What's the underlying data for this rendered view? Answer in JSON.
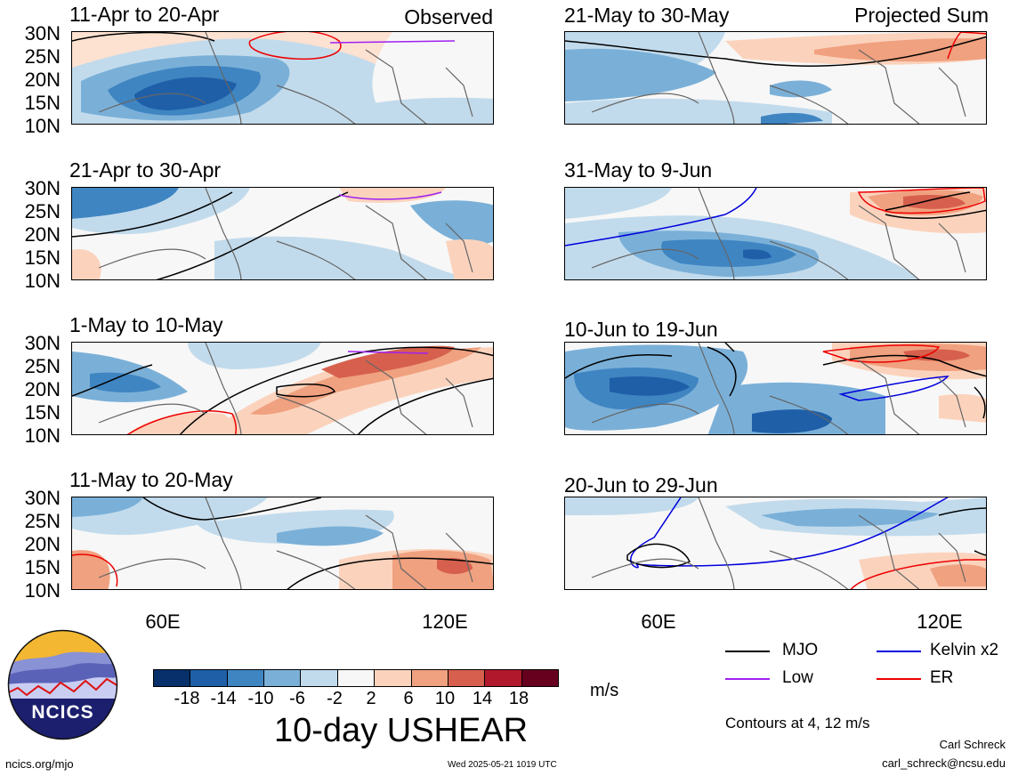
{
  "headers": {
    "observed": "Observed",
    "projected": "Projected Sum"
  },
  "latitude_ticks": [
    "30N",
    "25N",
    "20N",
    "15N",
    "10N"
  ],
  "longitude_ticks": [
    "60E",
    "120E"
  ],
  "panels": [
    {
      "title": "11-Apr to 20-Apr",
      "column": "observed"
    },
    {
      "title": "21-Apr to 30-Apr",
      "column": "observed"
    },
    {
      "title": "1-May to 10-May",
      "column": "observed"
    },
    {
      "title": "11-May to 20-May",
      "column": "observed"
    },
    {
      "title": "21-May to 30-May",
      "column": "projected"
    },
    {
      "title": "31-May to 9-Jun",
      "column": "projected"
    },
    {
      "title": "10-Jun to 19-Jun",
      "column": "projected"
    },
    {
      "title": "20-Jun to 29-Jun",
      "column": "projected"
    }
  ],
  "colorbar": {
    "labels": [
      "-18",
      "-14",
      "-10",
      "-6",
      "-2",
      "2",
      "6",
      "10",
      "14",
      "18"
    ],
    "colors": [
      "#08306b",
      "#1f5fa8",
      "#3f85c2",
      "#7ab0d8",
      "#c2dbec",
      "#f7f7f7",
      "#fbd3bd",
      "#f0a17f",
      "#d6604d",
      "#b2182b",
      "#67001f"
    ],
    "units": "m/s"
  },
  "variable_title": "10-day USHEAR",
  "legend": {
    "items": [
      {
        "label": "MJO",
        "color": "#000000"
      },
      {
        "label": "Kelvin x2",
        "color": "#0000dd"
      },
      {
        "label": "Low",
        "color": "#a020f0"
      },
      {
        "label": "ER",
        "color": "#ee0000"
      }
    ],
    "contours_note": "Contours at 4, 12 m/s"
  },
  "logo": {
    "text": "NCICS"
  },
  "footer": {
    "url": "ncics.org/mjo",
    "timestamp": "Wed 2025-05-21 1019 UTC",
    "author": "Carl Schreck",
    "email": "carl_schreck@ncsu.edu"
  }
}
